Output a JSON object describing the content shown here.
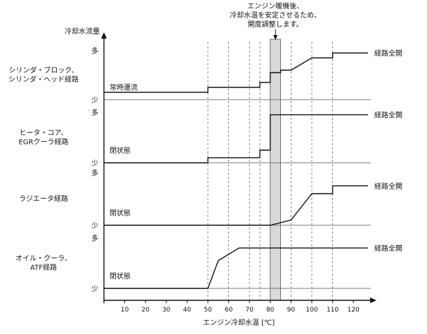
{
  "chart_data": {
    "type": "line",
    "ylabel": "冷却水流量",
    "xlabel": "エンジン冷却水温 [℃]",
    "x_ticks": [
      10,
      20,
      30,
      40,
      50,
      60,
      70,
      80,
      90,
      100,
      110,
      120
    ],
    "xlim": [
      0,
      127
    ],
    "grid_x": [
      50,
      60,
      70,
      75,
      80,
      90,
      100,
      110
    ],
    "highlight_band": [
      80,
      85
    ],
    "annotation": "エンジン暖機後、\n冷却水温を安定させるため、\n開度調整します。",
    "level_high_label": "多",
    "level_low_label": "少",
    "rows": [
      {
        "name": "シリンダ・ブロック、\nシリンダ・ヘッド経路",
        "low_state": "常時還流",
        "end_label": "経路全開",
        "points": [
          [
            0,
            0.15
          ],
          [
            50,
            0.15
          ],
          [
            50,
            0.25
          ],
          [
            75,
            0.25
          ],
          [
            75,
            0.35
          ],
          [
            80,
            0.35
          ],
          [
            80,
            0.55
          ],
          [
            85,
            0.55
          ],
          [
            85,
            0.6
          ],
          [
            90,
            0.6
          ],
          [
            100,
            0.85
          ],
          [
            110,
            0.85
          ],
          [
            110,
            0.95
          ],
          [
            127,
            0.95
          ]
        ]
      },
      {
        "name": "ヒータ・コア、\nEGRクーラ経路",
        "low_state": "閉状態",
        "end_label": "経路全開",
        "points": [
          [
            0,
            0.0
          ],
          [
            50,
            0.0
          ],
          [
            50,
            0.1
          ],
          [
            75,
            0.1
          ],
          [
            75,
            0.25
          ],
          [
            80,
            0.25
          ],
          [
            80,
            0.95
          ],
          [
            127,
            0.95
          ]
        ]
      },
      {
        "name": "ラジエータ経路",
        "low_state": "閉状態",
        "end_label": "経路全開",
        "points": [
          [
            0,
            0.0
          ],
          [
            80,
            0.0
          ],
          [
            90,
            0.1
          ],
          [
            100,
            0.6
          ],
          [
            110,
            0.6
          ],
          [
            110,
            0.75
          ],
          [
            127,
            0.75
          ]
        ]
      },
      {
        "name": "オイル・クーラ、\nATF経路",
        "low_state": "閉状態",
        "end_label": "経路全開",
        "points": [
          [
            0,
            0.0
          ],
          [
            50,
            0.0
          ],
          [
            55,
            0.55
          ],
          [
            65,
            0.8
          ],
          [
            127,
            0.8
          ]
        ]
      }
    ]
  }
}
